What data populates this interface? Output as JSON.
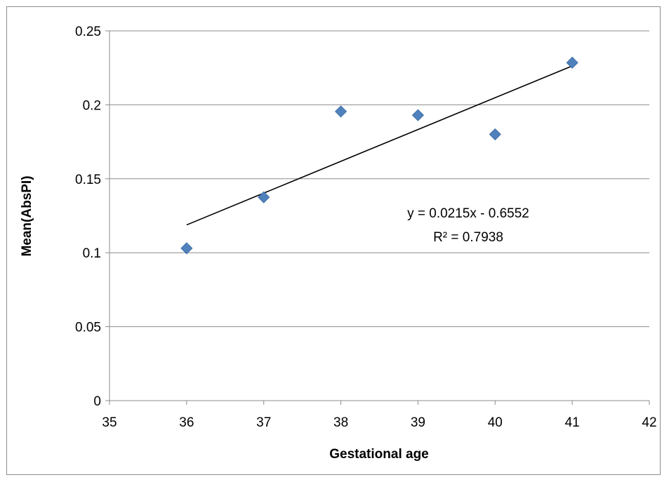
{
  "chart_data": {
    "type": "scatter",
    "title": "",
    "xlabel": "Gestational age",
    "ylabel": "Mean(AbsPI)",
    "xlim": [
      35,
      42
    ],
    "ylim": [
      0,
      0.25
    ],
    "x_ticks": [
      "35",
      "36",
      "37",
      "38",
      "39",
      "40",
      "41",
      "42"
    ],
    "y_ticks": [
      "0",
      "0.05",
      "0.1",
      "0.15",
      "0.2",
      "0.25"
    ],
    "grid": "horizontal",
    "legend": "none",
    "marker_color": "#4f81bd",
    "series": [
      {
        "x": [
          36,
          37,
          38,
          39,
          40,
          41
        ],
        "y": [
          0.103,
          0.1375,
          0.1955,
          0.193,
          0.18,
          0.2285
        ]
      }
    ],
    "trendline": {
      "type": "linear",
      "slope": 0.0215,
      "intercept": -0.6552,
      "x_range": [
        36,
        41
      ],
      "equation_label": "y = 0.0215x - 0.6552",
      "r2_label": "R² = 0.7938"
    }
  }
}
